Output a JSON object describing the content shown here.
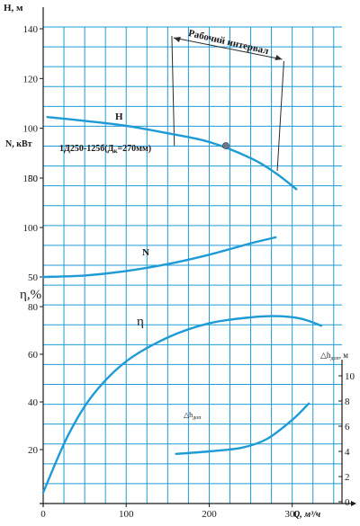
{
  "chart_data": {
    "type": "line",
    "pump_label": "1Д250-125б(Д",
    "pump_label_sub": "к",
    "pump_label_tail": "=270мм)",
    "x_axis": {
      "label": "Q, м³/ч",
      "range": [
        0,
        360
      ],
      "ticks": [
        0,
        100,
        200,
        300
      ],
      "tick_labels": [
        "0",
        "100",
        "200",
        "300"
      ],
      "grid_step": 25
    },
    "axes": {
      "H": {
        "label": "H, м",
        "range": [
          70,
          140
        ],
        "ticks": [
          80,
          100,
          120,
          140
        ],
        "tick_labels": [
          "80",
          "100",
          "120",
          "140"
        ]
      },
      "N": {
        "label": "N, кВт",
        "range": [
          45,
          170
        ],
        "ticks": [
          50,
          100,
          150
        ],
        "tick_labels": [
          "50",
          "100",
          "150"
        ]
      },
      "eta": {
        "label": "η,%",
        "range": [
          0,
          80
        ],
        "ticks": [
          20,
          40,
          60,
          80
        ],
        "tick_labels": [
          "20",
          "40",
          "60",
          "80"
        ]
      },
      "npsh": {
        "label": "△h",
        "label_sub": "доп",
        "label_unit": ", м",
        "range": [
          0,
          10
        ],
        "ticks": [
          0,
          2,
          4,
          6,
          8,
          10
        ],
        "tick_labels": [
          "0",
          "2",
          "4",
          "6",
          "8",
          "10"
        ]
      }
    },
    "working_range": {
      "label": "Рабочий интервал",
      "q_min": 155,
      "q_max": 290
    },
    "marker": {
      "series": "H",
      "x": 220,
      "y": 93
    },
    "series": [
      {
        "name": "H",
        "axis": "H",
        "color": "#1e9bd6",
        "x": [
          5,
          50,
          100,
          150,
          200,
          250,
          280,
          305
        ],
        "y": [
          104.5,
          103,
          101,
          98,
          94.5,
          88,
          82,
          75.5
        ]
      },
      {
        "name": "N",
        "axis": "N",
        "color": "#1e9bd6",
        "x": [
          0,
          50,
          100,
          150,
          200,
          250,
          280
        ],
        "y": [
          50,
          51.5,
          56,
          63,
          72.5,
          84,
          90
        ]
      },
      {
        "name": "η",
        "axis": "eta",
        "color": "#1e9bd6",
        "x": [
          0,
          30,
          60,
          100,
          150,
          200,
          250,
          280,
          310,
          335
        ],
        "y": [
          2,
          26,
          43,
          57,
          67,
          73,
          75.5,
          76,
          75,
          72
        ]
      },
      {
        "name": "△h",
        "name_sub": "доп",
        "axis": "npsh",
        "color": "#1e9bd6",
        "x": [
          160,
          200,
          240,
          270,
          300,
          320
        ],
        "y": [
          3.8,
          4,
          4.3,
          5,
          6.5,
          7.8
        ]
      }
    ]
  }
}
